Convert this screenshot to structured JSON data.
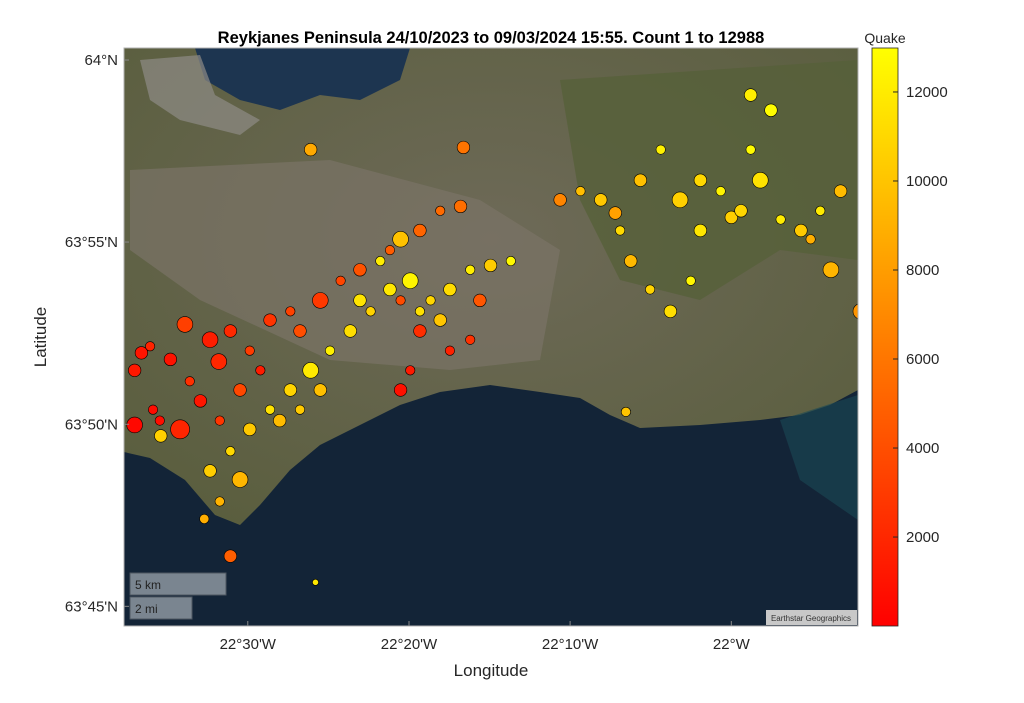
{
  "chart_data": {
    "type": "scatter",
    "title": "Reykjanes Peninsula 24/10/2023 to 09/03/2024 15:55.  Count 1 to 12988",
    "xlabel": "Longitude",
    "ylabel": "Latitude",
    "xlim": [
      -22.628,
      -21.869
    ],
    "ylim": [
      63.741,
      64.0055
    ],
    "x_ticks": [
      {
        "value": -22.5,
        "label": "22°30'W"
      },
      {
        "value": -22.3333,
        "label": "22°20'W"
      },
      {
        "value": -22.1667,
        "label": "22°10'W"
      },
      {
        "value": -22.0,
        "label": "22°W"
      }
    ],
    "y_ticks": [
      {
        "value": 64.0,
        "label": "64°N"
      },
      {
        "value": 63.9167,
        "label": "63°55'N"
      },
      {
        "value": 63.8333,
        "label": "63°50'N"
      },
      {
        "value": 63.75,
        "label": "63°45'N"
      }
    ],
    "colorbar": {
      "label": "Quake",
      "colormap": "autumn",
      "low_color": "#ff0000",
      "high_color": "#ffff00",
      "limits": [
        1,
        12988
      ],
      "ticks": [
        {
          "value": 2000,
          "label": "2000"
        },
        {
          "value": 4000,
          "label": "4000"
        },
        {
          "value": 6000,
          "label": "6000"
        },
        {
          "value": 8000,
          "label": "8000"
        },
        {
          "value": 10000,
          "label": "10000"
        },
        {
          "value": 12000,
          "label": "12000"
        }
      ]
    },
    "basemap": "satellite",
    "scale_bar": {
      "km": "5 km",
      "mi": "2 mi"
    },
    "attribution": "Earthstar Geographics",
    "point_fields": [
      "lon",
      "lat",
      "quake_index",
      "size"
    ],
    "points": [
      [
        -22.617,
        63.858,
        1200,
        3
      ],
      [
        -22.601,
        63.869,
        1800,
        2
      ],
      [
        -22.58,
        63.863,
        900,
        3
      ],
      [
        -22.56,
        63.853,
        2400,
        2
      ],
      [
        -22.539,
        63.872,
        1500,
        4
      ],
      [
        -22.518,
        63.876,
        2100,
        3
      ],
      [
        -22.498,
        63.867,
        3000,
        2
      ],
      [
        -22.477,
        63.881,
        2600,
        3
      ],
      [
        -22.456,
        63.885,
        3300,
        2
      ],
      [
        -22.549,
        63.844,
        1100,
        3
      ],
      [
        -22.591,
        63.835,
        700,
        2
      ],
      [
        -22.617,
        63.833,
        400,
        4
      ],
      [
        -22.57,
        63.831,
        1900,
        5
      ],
      [
        -22.529,
        63.835,
        2700,
        2
      ],
      [
        -22.508,
        63.849,
        3600,
        3
      ],
      [
        -22.487,
        63.858,
        1400,
        2
      ],
      [
        -22.446,
        63.876,
        3900,
        3
      ],
      [
        -22.425,
        63.89,
        2900,
        4
      ],
      [
        -22.404,
        63.899,
        3500,
        2
      ],
      [
        -22.384,
        63.904,
        4200,
        3
      ],
      [
        -22.353,
        63.913,
        4700,
        2
      ],
      [
        -22.322,
        63.922,
        5100,
        3
      ],
      [
        -22.301,
        63.931,
        5400,
        2
      ],
      [
        -22.28,
        63.933,
        5600,
        3
      ],
      [
        -22.342,
        63.89,
        3800,
        2
      ],
      [
        -22.322,
        63.876,
        2300,
        3
      ],
      [
        -22.291,
        63.867,
        1700,
        2
      ],
      [
        -22.27,
        63.872,
        2500,
        2
      ],
      [
        -22.26,
        63.89,
        4400,
        3
      ],
      [
        -22.332,
        63.858,
        1300,
        2
      ],
      [
        -22.342,
        63.849,
        800,
        3
      ],
      [
        -22.598,
        63.84,
        600,
        2
      ],
      [
        -22.565,
        63.879,
        3200,
        4
      ],
      [
        -22.53,
        63.862,
        2000,
        4
      ],
      [
        -22.61,
        63.866,
        1000,
        3
      ],
      [
        -22.539,
        63.812,
        10500,
        3
      ],
      [
        -22.518,
        63.821,
        11000,
        2
      ],
      [
        -22.498,
        63.831,
        10200,
        3
      ],
      [
        -22.477,
        63.84,
        11500,
        2
      ],
      [
        -22.456,
        63.849,
        10800,
        3
      ],
      [
        -22.435,
        63.858,
        11900,
        4
      ],
      [
        -22.415,
        63.867,
        12200,
        2
      ],
      [
        -22.394,
        63.876,
        11300,
        3
      ],
      [
        -22.373,
        63.885,
        10700,
        2
      ],
      [
        -22.353,
        63.895,
        11800,
        3
      ],
      [
        -22.332,
        63.899,
        12500,
        4
      ],
      [
        -22.311,
        63.89,
        10900,
        2
      ],
      [
        -22.291,
        63.895,
        11200,
        3
      ],
      [
        -22.27,
        63.904,
        12100,
        2
      ],
      [
        -22.249,
        63.906,
        10400,
        3
      ],
      [
        -22.228,
        63.908,
        12700,
        2
      ],
      [
        -22.425,
        63.849,
        9800,
        3
      ],
      [
        -22.446,
        63.84,
        10300,
        2
      ],
      [
        -22.467,
        63.835,
        9600,
        3
      ],
      [
        -22.508,
        63.808,
        9300,
        4
      ],
      [
        -22.529,
        63.798,
        9100,
        2
      ],
      [
        -22.384,
        63.89,
        11600,
        3
      ],
      [
        -22.363,
        63.908,
        12000,
        2
      ],
      [
        -22.342,
        63.918,
        9900,
        4
      ],
      [
        -22.322,
        63.885,
        11400,
        2
      ],
      [
        -22.301,
        63.881,
        10100,
        3
      ],
      [
        -22.59,
        63.828,
        10600,
        3
      ],
      [
        -22.545,
        63.79,
        8800,
        2
      ],
      [
        -22.135,
        63.936,
        10200,
        3
      ],
      [
        -22.115,
        63.922,
        11100,
        2
      ],
      [
        -22.094,
        63.945,
        9800,
        3
      ],
      [
        -22.073,
        63.959,
        12300,
        2
      ],
      [
        -22.053,
        63.936,
        10600,
        4
      ],
      [
        -22.032,
        63.922,
        11700,
        3
      ],
      [
        -22.011,
        63.94,
        12400,
        2
      ],
      [
        -21.99,
        63.931,
        10900,
        3
      ],
      [
        -21.97,
        63.945,
        11500,
        4
      ],
      [
        -21.949,
        63.927,
        12000,
        2
      ],
      [
        -21.928,
        63.922,
        10300,
        3
      ],
      [
        -21.908,
        63.931,
        11900,
        2
      ],
      [
        -21.887,
        63.94,
        9600,
        3
      ],
      [
        -22.084,
        63.895,
        10800,
        2
      ],
      [
        -22.063,
        63.885,
        11300,
        3
      ],
      [
        -22.042,
        63.899,
        12600,
        2
      ],
      [
        -22.104,
        63.908,
        9400,
        3
      ],
      [
        -21.98,
        63.959,
        12800,
        2
      ],
      [
        -21.959,
        63.977,
        12900,
        3
      ],
      [
        -21.918,
        63.918,
        8900,
        2
      ],
      [
        -21.897,
        63.904,
        9200,
        4
      ],
      [
        -21.866,
        63.885,
        7600,
        4
      ],
      [
        -22.177,
        63.936,
        6800,
        3
      ],
      [
        -22.156,
        63.94,
        9700,
        2
      ],
      [
        -22.032,
        63.945,
        11000,
        3
      ],
      [
        -22.0,
        63.928,
        10500,
        3
      ],
      [
        -22.12,
        63.93,
        8200,
        3
      ],
      [
        -22.435,
        63.959,
        8600,
        3
      ],
      [
        -22.277,
        63.96,
        5900,
        3
      ],
      [
        -21.98,
        63.984,
        12100,
        3
      ],
      [
        -22.109,
        63.839,
        10000,
        2
      ],
      [
        -22.43,
        63.761,
        11800,
        1
      ],
      [
        -22.518,
        63.773,
        4800,
        3
      ]
    ]
  }
}
